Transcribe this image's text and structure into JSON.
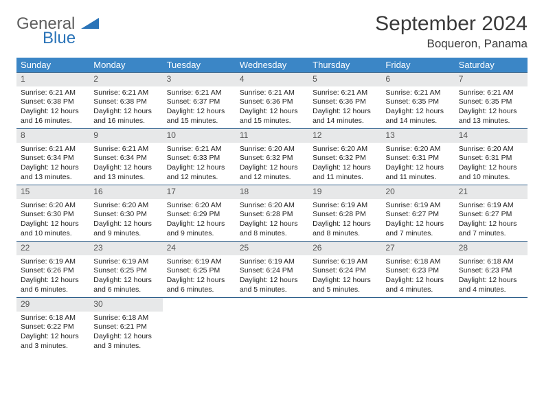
{
  "logo": {
    "general": "General",
    "blue": "Blue"
  },
  "title": "September 2024",
  "location": "Boqueron, Panama",
  "colors": {
    "header_bg": "#3b86c6",
    "header_text": "#ffffff",
    "daynum_bg": "#e7e8e9",
    "row_border": "#2d5e8a",
    "logo_gray": "#5e5e5e",
    "logo_blue": "#2b74b8"
  },
  "day_headers": [
    "Sunday",
    "Monday",
    "Tuesday",
    "Wednesday",
    "Thursday",
    "Friday",
    "Saturday"
  ],
  "days": [
    {
      "n": 1,
      "sr": "6:21 AM",
      "ss": "6:38 PM",
      "dl": "12 hours and 16 minutes."
    },
    {
      "n": 2,
      "sr": "6:21 AM",
      "ss": "6:38 PM",
      "dl": "12 hours and 16 minutes."
    },
    {
      "n": 3,
      "sr": "6:21 AM",
      "ss": "6:37 PM",
      "dl": "12 hours and 15 minutes."
    },
    {
      "n": 4,
      "sr": "6:21 AM",
      "ss": "6:36 PM",
      "dl": "12 hours and 15 minutes."
    },
    {
      "n": 5,
      "sr": "6:21 AM",
      "ss": "6:36 PM",
      "dl": "12 hours and 14 minutes."
    },
    {
      "n": 6,
      "sr": "6:21 AM",
      "ss": "6:35 PM",
      "dl": "12 hours and 14 minutes."
    },
    {
      "n": 7,
      "sr": "6:21 AM",
      "ss": "6:35 PM",
      "dl": "12 hours and 13 minutes."
    },
    {
      "n": 8,
      "sr": "6:21 AM",
      "ss": "6:34 PM",
      "dl": "12 hours and 13 minutes."
    },
    {
      "n": 9,
      "sr": "6:21 AM",
      "ss": "6:34 PM",
      "dl": "12 hours and 13 minutes."
    },
    {
      "n": 10,
      "sr": "6:21 AM",
      "ss": "6:33 PM",
      "dl": "12 hours and 12 minutes."
    },
    {
      "n": 11,
      "sr": "6:20 AM",
      "ss": "6:32 PM",
      "dl": "12 hours and 12 minutes."
    },
    {
      "n": 12,
      "sr": "6:20 AM",
      "ss": "6:32 PM",
      "dl": "12 hours and 11 minutes."
    },
    {
      "n": 13,
      "sr": "6:20 AM",
      "ss": "6:31 PM",
      "dl": "12 hours and 11 minutes."
    },
    {
      "n": 14,
      "sr": "6:20 AM",
      "ss": "6:31 PM",
      "dl": "12 hours and 10 minutes."
    },
    {
      "n": 15,
      "sr": "6:20 AM",
      "ss": "6:30 PM",
      "dl": "12 hours and 10 minutes."
    },
    {
      "n": 16,
      "sr": "6:20 AM",
      "ss": "6:30 PM",
      "dl": "12 hours and 9 minutes."
    },
    {
      "n": 17,
      "sr": "6:20 AM",
      "ss": "6:29 PM",
      "dl": "12 hours and 9 minutes."
    },
    {
      "n": 18,
      "sr": "6:20 AM",
      "ss": "6:28 PM",
      "dl": "12 hours and 8 minutes."
    },
    {
      "n": 19,
      "sr": "6:19 AM",
      "ss": "6:28 PM",
      "dl": "12 hours and 8 minutes."
    },
    {
      "n": 20,
      "sr": "6:19 AM",
      "ss": "6:27 PM",
      "dl": "12 hours and 7 minutes."
    },
    {
      "n": 21,
      "sr": "6:19 AM",
      "ss": "6:27 PM",
      "dl": "12 hours and 7 minutes."
    },
    {
      "n": 22,
      "sr": "6:19 AM",
      "ss": "6:26 PM",
      "dl": "12 hours and 6 minutes."
    },
    {
      "n": 23,
      "sr": "6:19 AM",
      "ss": "6:25 PM",
      "dl": "12 hours and 6 minutes."
    },
    {
      "n": 24,
      "sr": "6:19 AM",
      "ss": "6:25 PM",
      "dl": "12 hours and 6 minutes."
    },
    {
      "n": 25,
      "sr": "6:19 AM",
      "ss": "6:24 PM",
      "dl": "12 hours and 5 minutes."
    },
    {
      "n": 26,
      "sr": "6:19 AM",
      "ss": "6:24 PM",
      "dl": "12 hours and 5 minutes."
    },
    {
      "n": 27,
      "sr": "6:18 AM",
      "ss": "6:23 PM",
      "dl": "12 hours and 4 minutes."
    },
    {
      "n": 28,
      "sr": "6:18 AM",
      "ss": "6:23 PM",
      "dl": "12 hours and 4 minutes."
    },
    {
      "n": 29,
      "sr": "6:18 AM",
      "ss": "6:22 PM",
      "dl": "12 hours and 3 minutes."
    },
    {
      "n": 30,
      "sr": "6:18 AM",
      "ss": "6:21 PM",
      "dl": "12 hours and 3 minutes."
    }
  ],
  "labels": {
    "sunrise": "Sunrise:",
    "sunset": "Sunset:",
    "daylight": "Daylight:"
  }
}
